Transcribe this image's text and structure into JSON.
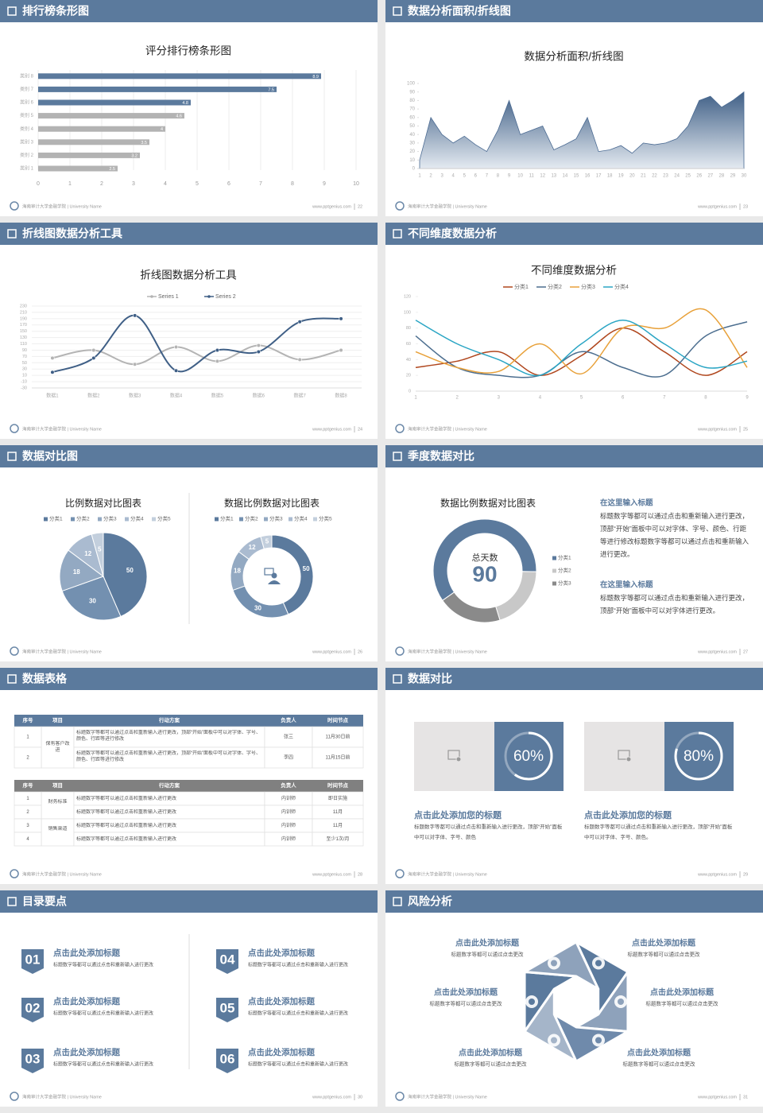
{
  "footer": {
    "school": "海南审计大学金融学院 | University Name",
    "site": "www.pptgenius.com"
  },
  "slides": [
    {
      "header": "排行榜条形图",
      "page": 22
    },
    {
      "header": "数据分析面积/折线图",
      "page": 23
    },
    {
      "header": "折线图数据分析工具",
      "page": 24
    },
    {
      "header": "不同维度数据分析",
      "page": 25
    },
    {
      "header": "数据对比图",
      "page": 26
    },
    {
      "header": "季度数据对比",
      "page": 27
    },
    {
      "header": "数据表格",
      "page": 28
    },
    {
      "header": "数据对比",
      "page": 29
    },
    {
      "header": "目录要点",
      "page": 30
    },
    {
      "header": "风险分析",
      "page": 31
    }
  ],
  "chart_data": [
    {
      "type": "bar",
      "horizontal": true,
      "title": "评分排行榜条形图",
      "categories": [
        "类别 1",
        "类别 2",
        "类别 3",
        "类别 4",
        "类别 5",
        "类别 6",
        "类别 7",
        "类别 8"
      ],
      "values": [
        2.5,
        3.2,
        3.5,
        4,
        4.6,
        4.8,
        7.5,
        8.9
      ],
      "colors": [
        "#b3b3b3",
        "#b3b3b3",
        "#b3b3b3",
        "#b3b3b3",
        "#b3b3b3",
        "#5b7a9d",
        "#5b7a9d",
        "#5b7a9d"
      ],
      "xlim": [
        0,
        10
      ],
      "xticks": [
        0,
        1,
        2,
        3,
        4,
        5,
        6,
        7,
        8,
        9,
        10
      ],
      "grid": true
    },
    {
      "type": "area",
      "title": "数据分析面积/折线图",
      "x": [
        1,
        2,
        3,
        4,
        5,
        6,
        7,
        8,
        9,
        10,
        11,
        12,
        13,
        14,
        15,
        16,
        17,
        18,
        19,
        20,
        21,
        22,
        23,
        24,
        25,
        26,
        27,
        28,
        29,
        30
      ],
      "values": [
        10,
        60,
        40,
        30,
        38,
        28,
        20,
        45,
        80,
        40,
        45,
        50,
        22,
        28,
        35,
        60,
        20,
        22,
        27,
        18,
        30,
        28,
        30,
        35,
        50,
        80,
        85,
        72,
        80,
        90
      ],
      "color": "#4a6a92",
      "xlim": [
        1,
        30
      ],
      "ylim": [
        0,
        100
      ],
      "yticks": [
        0,
        10,
        20,
        30,
        40,
        50,
        60,
        70,
        80,
        90,
        100
      ]
    },
    {
      "type": "line",
      "title": "折线图数据分析工具",
      "markers": true,
      "grid": true,
      "legend": "top",
      "categories": [
        "数据1",
        "数据2",
        "数据3",
        "数据4",
        "数据5",
        "数据6",
        "数据7",
        "数据8"
      ],
      "series": [
        {
          "name": "Series 1",
          "color": "#b4b4b4",
          "values": [
            65,
            90,
            45,
            100,
            55,
            105,
            60,
            90
          ]
        },
        {
          "name": "Series 2",
          "color": "#3f5f86",
          "values": [
            20,
            65,
            200,
            25,
            90,
            85,
            180,
            190
          ]
        }
      ],
      "ylim": [
        -30,
        230
      ],
      "yticks": [
        -30,
        -10,
        10,
        30,
        50,
        70,
        90,
        110,
        130,
        150,
        170,
        190,
        210,
        230
      ]
    },
    {
      "type": "line",
      "title": "不同维度数据分析",
      "legend": "top",
      "x": [
        1,
        2,
        3,
        4,
        5,
        6,
        7,
        8,
        9
      ],
      "xlim": [
        1,
        9
      ],
      "series": [
        {
          "name": "分类1",
          "color": "#b0471e",
          "values": [
            30,
            38,
            50,
            20,
            45,
            80,
            50,
            20,
            50
          ]
        },
        {
          "name": "分类2",
          "color": "#4c6e8f",
          "values": [
            70,
            30,
            20,
            20,
            50,
            30,
            20,
            70,
            88
          ]
        },
        {
          "name": "分类3",
          "color": "#e8a13a",
          "values": [
            50,
            30,
            25,
            60,
            22,
            80,
            80,
            103,
            30
          ]
        },
        {
          "name": "分类4",
          "color": "#2aa5c4",
          "values": [
            90,
            60,
            40,
            20,
            60,
            90,
            60,
            30,
            38
          ]
        }
      ],
      "ylim": [
        0,
        120
      ],
      "yticks": [
        0,
        20,
        40,
        60,
        80,
        100,
        120
      ]
    },
    {
      "type": "pie",
      "title": "比例数据对比图表",
      "legend": "top",
      "categories": [
        "分类1",
        "分类2",
        "分类3",
        "分类4",
        "分类5"
      ],
      "values": [
        50,
        30,
        18,
        12,
        5
      ],
      "colors": [
        "#5b7a9d",
        "#7390b0",
        "#93a9c2",
        "#aabbd0",
        "#c3cfdd"
      ]
    },
    {
      "type": "donut",
      "title": "数据比例数据对比图表",
      "legend": "top",
      "categories": [
        "分类1",
        "分类2",
        "分类3",
        "分类4",
        "分类5"
      ],
      "values": [
        50,
        30,
        18,
        12,
        5
      ],
      "colors": [
        "#5b7a9d",
        "#7390b0",
        "#93a9c2",
        "#aabbd0",
        "#c3cfdd"
      ]
    },
    {
      "type": "donut",
      "title": "数据比例数据对比图表",
      "legend": "right",
      "categories": [
        "分类1",
        "分类2",
        "分类3"
      ],
      "values": [
        60,
        20,
        20
      ],
      "colors": [
        "#5b7a9d",
        "#c8c8c8",
        "#8a8a8a"
      ],
      "center_label": "总天数",
      "center_value": 90
    }
  ],
  "notes": [
    {
      "title": "在这里输入标题",
      "text": "标题数字等都可以通过点击和重新输入进行更改，顶部“开始”面板中可以对字体、字号、颜色、行距等进行修改标题数字等都可以通过点击和重新输入进行更改。"
    },
    {
      "title": "在这里输入标题",
      "text": "标题数字等都可以通过点击和重新输入进行更改，顶部“开始”面板中可以对字体进行更改。"
    }
  ],
  "tables": [
    {
      "columns": [
        "序号",
        "项目",
        "行动方案",
        "负责人",
        "时间节点"
      ],
      "groups": [
        {
          "item": "保有客户改进",
          "rows": [
            {
              "no": "1",
              "plan": "标题数字等都可以通过点击和重新输入进行更改，顶部“开始”面板中可以对字体、字号、颜色、行距等进行修改",
              "owner": "张三",
              "deadline": "11月30日前"
            },
            {
              "no": "2",
              "plan": "标题数字等都可以通过点击和重新输入进行更改，顶部“开始”面板中可以对字体、字号、颜色、行距等进行修改",
              "owner": "李四",
              "deadline": "11月15日前"
            }
          ]
        }
      ]
    },
    {
      "columns": [
        "序号",
        "项目",
        "行动方案",
        "负责人",
        "时间节点"
      ],
      "groups": [
        {
          "item": "财务标准",
          "rows": [
            {
              "no": "1",
              "plan": "标题数字等都可以通过点击和重新输入进行更改",
              "owner": "内训师",
              "deadline": "即日实施"
            },
            {
              "no": "2",
              "plan": "标题数字等都可以通过点击和重新输入进行更改",
              "owner": "内训师",
              "deadline": "11月"
            }
          ]
        },
        {
          "item": "销售渠道",
          "rows": [
            {
              "no": "3",
              "plan": "标题数字等都可以通过点击和重新输入进行更改",
              "owner": "内训师",
              "deadline": "11月"
            },
            {
              "no": "4",
              "plan": "标题数字等都可以通过点击和重新输入进行更改",
              "owner": "内训师",
              "deadline": "至少1次/月"
            }
          ]
        }
      ]
    }
  ],
  "compare": [
    {
      "value": 60,
      "label": "60%",
      "title": "点击此处添加您的标题",
      "text": "标题数字等都可以通过点击和重新输入进行更改，顶部“开始”面板中可以对字体、字号、颜色"
    },
    {
      "value": 80,
      "label": "80%",
      "title": "点击此处添加您的标题",
      "text": "标题数字等都可以通过点击和重新输入进行更改，顶部“开始”面板中可以对字体、字号、颜色。"
    }
  ],
  "toc": [
    {
      "number": "01",
      "title": "点击此处添加标题",
      "text": "标题数字等都可以通过点击和重新输入进行更改"
    },
    {
      "number": "02",
      "title": "点击此处添加标题",
      "text": "标题数字等都可以通过点击和重新输入进行更改"
    },
    {
      "number": "03",
      "title": "点击此处添加标题",
      "text": "标题数字等都可以通过点击和重新输入进行更改"
    },
    {
      "number": "04",
      "title": "点击此处添加标题",
      "text": "标题数字等都可以通过点击和重新输入进行更改"
    },
    {
      "number": "05",
      "title": "点击此处添加标题",
      "text": "标题数字等都可以通过点击和重新输入进行更改"
    },
    {
      "number": "06",
      "title": "点击此处添加标题",
      "text": "标题数字等都可以通过点击和重新输入进行更改"
    }
  ],
  "risk": [
    {
      "title": "点击此处添加标题",
      "text": "标题数字等都可以通过点击更改"
    },
    {
      "title": "点击此处添加标题",
      "text": "标题数字等都可以通过点击更改"
    },
    {
      "title": "点击此处添加标题",
      "text": "标题数字等都可以通过点击更改"
    },
    {
      "title": "点击此处添加标题",
      "text": "标题数字等都可以通过点击更改"
    },
    {
      "title": "点击此处添加标题",
      "text": "标题数字等都可以通过点击更改"
    },
    {
      "title": "点击此处添加标题",
      "text": "标题数字等都可以通过点击更改"
    }
  ]
}
